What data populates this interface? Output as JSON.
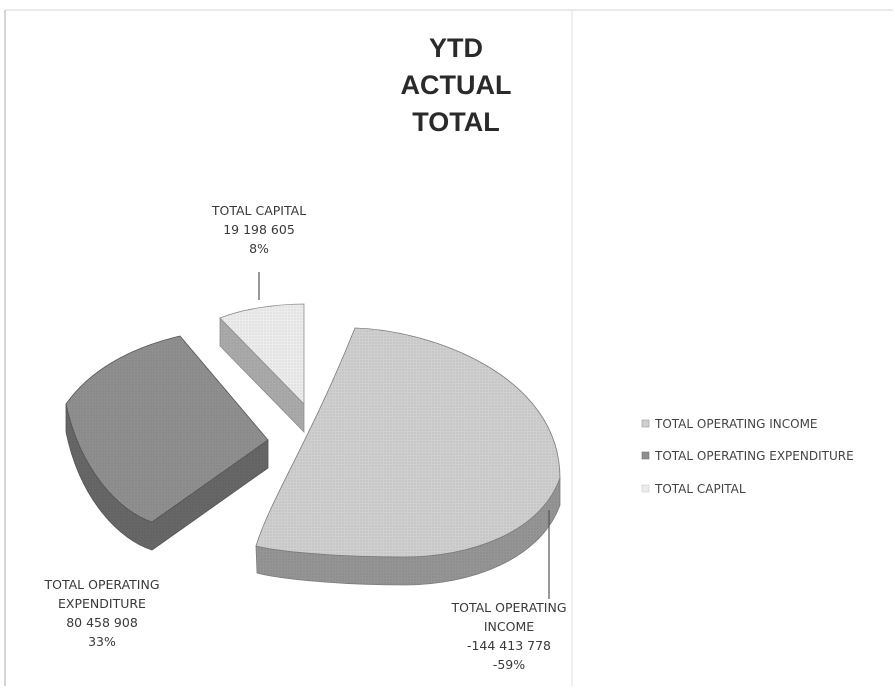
{
  "chart_data": {
    "type": "pie",
    "title": "YTD ACTUAL TOTAL",
    "title_lines": [
      "YTD",
      "ACTUAL",
      "TOTAL"
    ],
    "legend_position": "right",
    "slices": [
      {
        "name": "TOTAL OPERATING INCOME",
        "value": -144413778,
        "value_label": "-144 413 778",
        "percent": 59,
        "percent_label": "-59%",
        "label_lines": [
          "TOTAL OPERATING",
          "INCOME",
          "-144 413 778",
          "-59%"
        ],
        "color": "#cfcfcf"
      },
      {
        "name": "TOTAL OPERATING EXPENDITURE",
        "value": 80458908,
        "value_label": "80 458 908",
        "percent": 33,
        "percent_label": "33%",
        "label_lines": [
          "TOTAL OPERATING",
          "EXPENDITURE",
          "80 458 908",
          "33%"
        ],
        "color": "#8f8f8f"
      },
      {
        "name": "TOTAL CAPITAL",
        "value": 19198605,
        "value_label": "19 198 605",
        "percent": 8,
        "percent_label": "8%",
        "label_lines": [
          "TOTAL CAPITAL",
          "19 198 605",
          "8%"
        ],
        "color": "#ececec"
      }
    ]
  }
}
